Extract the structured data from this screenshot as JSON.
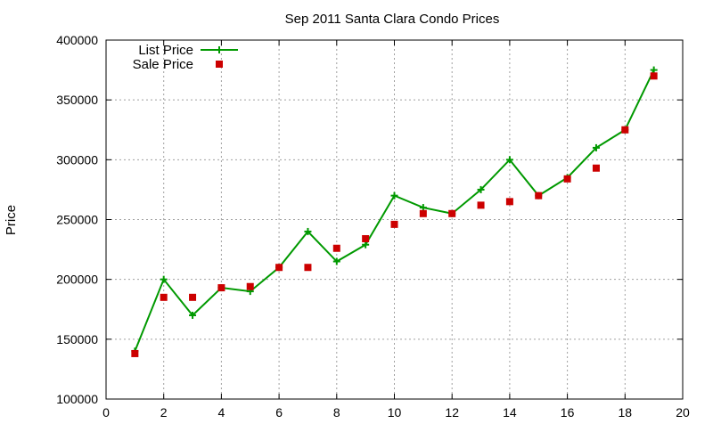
{
  "chart_data": {
    "type": "line",
    "title": "Sep 2011 Santa Clara Condo Prices",
    "xlabel": "",
    "ylabel": "Price",
    "xlim": [
      0,
      20
    ],
    "ylim": [
      100000,
      400000
    ],
    "xticks": [
      0,
      2,
      4,
      6,
      8,
      10,
      12,
      14,
      16,
      18,
      20
    ],
    "yticks": [
      100000,
      150000,
      200000,
      250000,
      300000,
      350000,
      400000
    ],
    "grid": true,
    "legend_position": "top-left",
    "series": [
      {
        "name": "List Price",
        "style": "line+cross",
        "color": "#009900",
        "x": [
          1,
          2,
          3,
          4,
          5,
          6,
          7,
          8,
          9,
          10,
          11,
          12,
          13,
          14,
          15,
          16,
          17,
          18,
          19
        ],
        "y": [
          140000,
          200000,
          170000,
          193000,
          190000,
          210000,
          240000,
          215000,
          229000,
          270000,
          260000,
          255000,
          275000,
          300000,
          270000,
          285000,
          310000,
          325000,
          375000
        ]
      },
      {
        "name": "Sale Price",
        "style": "square-marker",
        "color": "#cc0000",
        "x": [
          1,
          2,
          3,
          4,
          5,
          6,
          7,
          8,
          9,
          10,
          11,
          12,
          13,
          14,
          15,
          16,
          17,
          18,
          19
        ],
        "y": [
          138000,
          185000,
          185000,
          193000,
          194000,
          210000,
          210000,
          226000,
          234000,
          246000,
          255000,
          255000,
          262000,
          265000,
          270000,
          284000,
          293000,
          325000,
          370000
        ]
      }
    ]
  }
}
